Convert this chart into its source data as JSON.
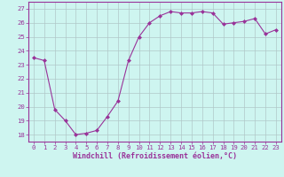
{
  "x": [
    0,
    1,
    2,
    3,
    4,
    5,
    6,
    7,
    8,
    9,
    10,
    11,
    12,
    13,
    14,
    15,
    16,
    17,
    18,
    19,
    20,
    21,
    22,
    23
  ],
  "y": [
    23.5,
    23.3,
    19.8,
    19.0,
    18.0,
    18.1,
    18.3,
    19.3,
    20.4,
    23.3,
    25.0,
    26.0,
    26.5,
    26.8,
    26.7,
    26.7,
    26.8,
    26.7,
    25.9,
    26.0,
    26.1,
    26.3,
    25.2,
    25.5
  ],
  "line_color": "#993399",
  "marker": "D",
  "marker_size": 2.0,
  "bg_color": "#cef5f0",
  "grid_color": "#b0c8c8",
  "xlabel": "Windchill (Refroidissement éolien,°C)",
  "xlim": [
    -0.5,
    23.5
  ],
  "ylim": [
    17.5,
    27.5
  ],
  "yticks": [
    18,
    19,
    20,
    21,
    22,
    23,
    24,
    25,
    26,
    27
  ],
  "xticks": [
    0,
    1,
    2,
    3,
    4,
    5,
    6,
    7,
    8,
    9,
    10,
    11,
    12,
    13,
    14,
    15,
    16,
    17,
    18,
    19,
    20,
    21,
    22,
    23
  ],
  "tick_fontsize": 5.2,
  "xlabel_fontsize": 6.0,
  "axis_label_color": "#993399",
  "spine_color": "#993399"
}
